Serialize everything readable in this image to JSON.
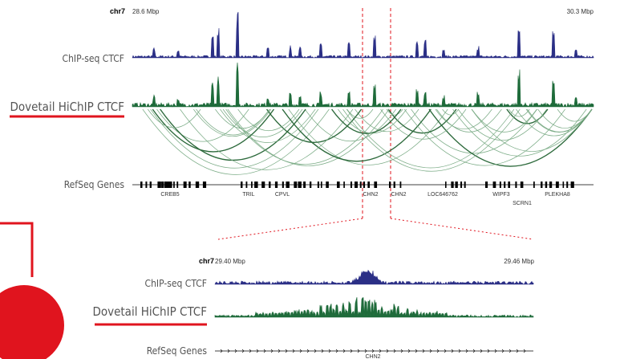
{
  "top_panel": {
    "chromosome": "chr7",
    "start": "28.6 Mbp",
    "end": "30.3 Mbp",
    "tracks": [
      "ChIP-seq CTCF",
      "Dovetail HiChIP CTCF",
      "RefSeq Genes"
    ],
    "genes": [
      "CREB5",
      "TRIL",
      "CPVL",
      "CHN2",
      "CHN2",
      "LOC646762",
      "WIPF3",
      "SCRN1",
      "PLEKHA8"
    ]
  },
  "zoom_panel": {
    "chromosome": "chr7",
    "start": "29.40 Mbp",
    "end": "29.46 Mbp",
    "tracks": [
      "ChIP-seq CTCF",
      "Dovetail HiChIP CTCF",
      "RefSeq Genes"
    ],
    "genes": [
      "CHN2"
    ]
  }
}
